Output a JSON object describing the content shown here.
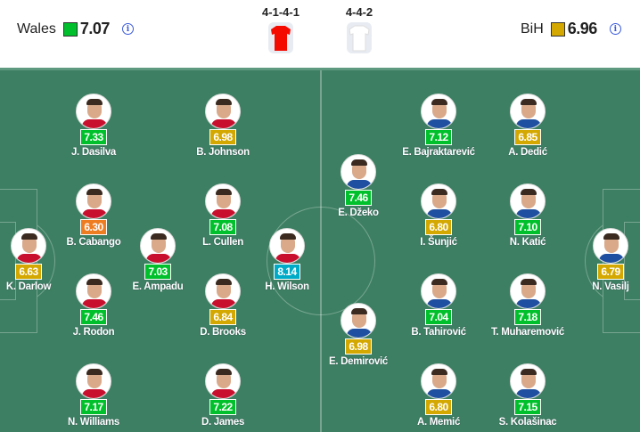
{
  "colors": {
    "green": "#00c12b",
    "yellow": "#d4a800",
    "orange": "#ee7d22",
    "blue": "#00abc8",
    "pitch": "#3d7f62"
  },
  "home": {
    "name": "Wales",
    "rating": "7.07",
    "rating_color": "#00c12b",
    "formation": "4-1-4-1",
    "shirt_color": "#f50a00",
    "players": [
      {
        "name": "J. Dasilva",
        "rating": "7.33"
      },
      {
        "name": "B. Johnson",
        "rating": "6.98"
      },
      {
        "name": "B. Cabango",
        "rating": "6.30"
      },
      {
        "name": "L. Cullen",
        "rating": "7.08"
      },
      {
        "name": "K. Darlow",
        "rating": "6.63"
      },
      {
        "name": "E. Ampadu",
        "rating": "7.03"
      },
      {
        "name": "H. Wilson",
        "rating": "8.14"
      },
      {
        "name": "J. Rodon",
        "rating": "7.46"
      },
      {
        "name": "D. Brooks",
        "rating": "6.84"
      },
      {
        "name": "N. Williams",
        "rating": "7.17"
      },
      {
        "name": "D. James",
        "rating": "7.22"
      }
    ]
  },
  "away": {
    "name": "BiH",
    "rating": "6.96",
    "rating_color": "#d4a800",
    "formation": "4-4-2",
    "shirt_color": "#ffffff",
    "players": [
      {
        "name": "E. Bajraktarević",
        "rating": "7.12"
      },
      {
        "name": "A. Dedić",
        "rating": "6.85"
      },
      {
        "name": "E. Džeko",
        "rating": "7.46"
      },
      {
        "name": "I. Šunjić",
        "rating": "6.80"
      },
      {
        "name": "N. Katić",
        "rating": "7.10"
      },
      {
        "name": "N. Vasilj",
        "rating": "6.79"
      },
      {
        "name": "B. Tahirović",
        "rating": "7.04"
      },
      {
        "name": "T. Muharemović",
        "rating": "7.18"
      },
      {
        "name": "E. Demirović",
        "rating": "6.98"
      },
      {
        "name": "A. Memić",
        "rating": "6.80"
      },
      {
        "name": "S. Kolašinac",
        "rating": "7.15"
      }
    ]
  },
  "icons": {
    "info": "info-circle-icon",
    "shirt": "jersey-icon"
  }
}
